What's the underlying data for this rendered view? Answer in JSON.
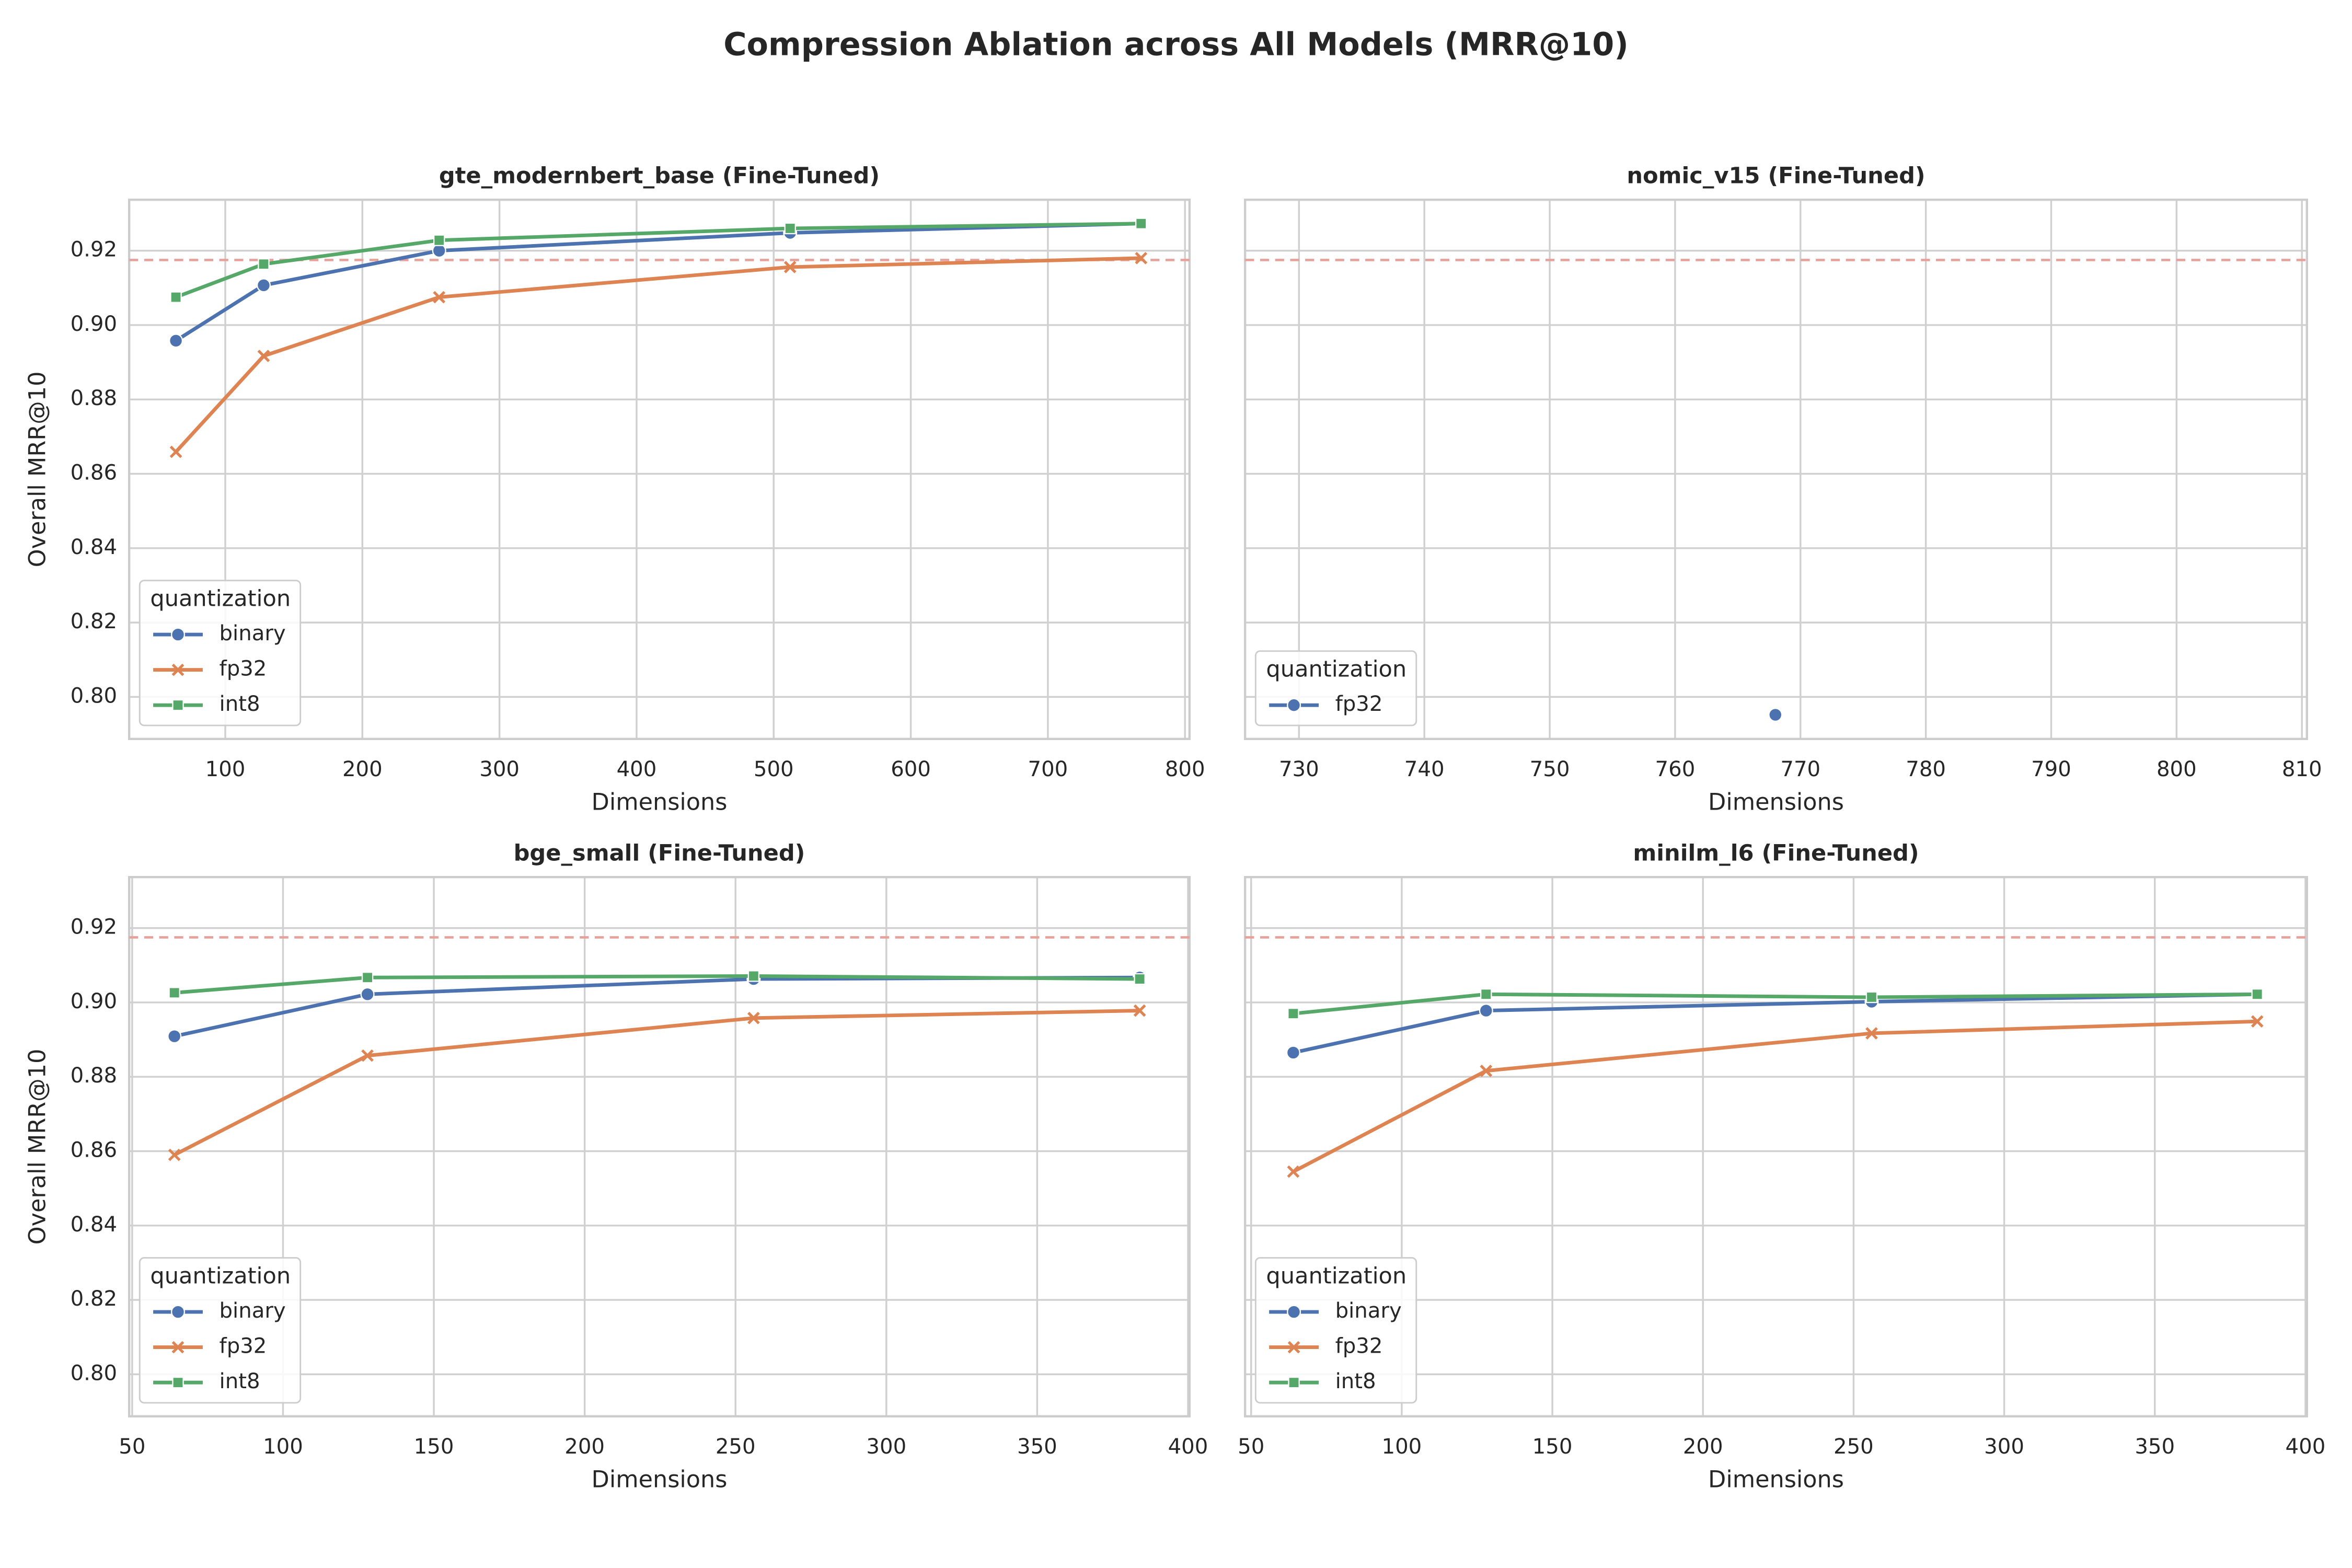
{
  "title": "Compression Ablation across All Models (MRR@10)",
  "chart_data": [
    {
      "type": "line",
      "title": "gte_modernbert_base (Fine-Tuned)",
      "x_label": "Dimensions",
      "y_label": "Overall MRR@10",
      "x": [
        64,
        128,
        256,
        512,
        768
      ],
      "series": [
        {
          "name": "binary",
          "color": "#4c72b0",
          "marker": "o",
          "values": [
            0.8958,
            0.9107,
            0.92,
            0.9248,
            0.9273
          ]
        },
        {
          "name": "fp32",
          "color": "#dd8452",
          "marker": "x",
          "values": [
            0.8659,
            0.8917,
            0.9075,
            0.9156,
            0.918
          ]
        },
        {
          "name": "int8",
          "color": "#55a868",
          "marker": "s",
          "values": [
            0.9075,
            0.9164,
            0.9228,
            0.926,
            0.9273
          ]
        }
      ],
      "xlim": [
        29.9,
        803.3
      ],
      "xticks": [
        100,
        200,
        300,
        400,
        500,
        600,
        700,
        800
      ],
      "ylim": [
        0.7887,
        0.9337
      ],
      "yticks": [
        {
          "value": 0.8,
          "label": "0.80"
        },
        {
          "value": 0.82,
          "label": "0.82"
        },
        {
          "value": 0.84,
          "label": "0.84"
        },
        {
          "value": 0.86,
          "label": "0.86"
        },
        {
          "value": 0.88,
          "label": "0.88"
        },
        {
          "value": 0.9,
          "label": "0.90"
        },
        {
          "value": 0.92,
          "label": "0.92"
        }
      ],
      "reference_line": 0.9175,
      "reference_color": "#e8a09a",
      "grid": true,
      "legend_title": "quantization",
      "legend_loc": "lower left"
    },
    {
      "type": "line",
      "title": "nomic_v15 (Fine-Tuned)",
      "x_label": "Dimensions",
      "x": [
        768
      ],
      "series": [
        {
          "name": "fp32",
          "color": "#4c72b0",
          "marker": "o",
          "values": [
            0.7952
          ]
        }
      ],
      "xlim": [
        725.7,
        810.4
      ],
      "xticks": [
        730,
        740,
        750,
        760,
        770,
        780,
        790,
        800,
        810
      ],
      "ylim": [
        0.7887,
        0.9337
      ],
      "yticks": [
        0.8,
        0.82,
        0.84,
        0.86,
        0.88,
        0.9,
        0.92
      ],
      "show_yticklabels": false,
      "reference_line": 0.9175,
      "reference_color": "#e8a09a",
      "grid": true,
      "legend_title": "quantization",
      "legend_loc": "lower left"
    },
    {
      "type": "line",
      "title": "bge_small (Fine-Tuned)",
      "x_label": "Dimensions",
      "y_label": "Overall MRR@10",
      "x": [
        64,
        128,
        256,
        384
      ],
      "series": [
        {
          "name": "binary",
          "color": "#4c72b0",
          "marker": "o",
          "values": [
            0.8909,
            0.9022,
            0.9063,
            0.9067
          ]
        },
        {
          "name": "fp32",
          "color": "#dd8452",
          "marker": "x",
          "values": [
            0.859,
            0.8857,
            0.8958,
            0.8978
          ]
        },
        {
          "name": "int8",
          "color": "#55a868",
          "marker": "s",
          "values": [
            0.9026,
            0.9067,
            0.9071,
            0.9063
          ]
        }
      ],
      "xlim": [
        49,
        400.5
      ],
      "xticks": [
        50,
        100,
        150,
        200,
        250,
        300,
        350,
        400
      ],
      "ylim": [
        0.7887,
        0.9337
      ],
      "yticks": [
        {
          "value": 0.8,
          "label": "0.80"
        },
        {
          "value": 0.82,
          "label": "0.82"
        },
        {
          "value": 0.84,
          "label": "0.84"
        },
        {
          "value": 0.86,
          "label": "0.86"
        },
        {
          "value": 0.88,
          "label": "0.88"
        },
        {
          "value": 0.9,
          "label": "0.90"
        },
        {
          "value": 0.92,
          "label": "0.92"
        }
      ],
      "reference_line": 0.9175,
      "reference_color": "#e8a09a",
      "grid": true,
      "legend_title": "quantization",
      "legend_loc": "lower left"
    },
    {
      "type": "line",
      "title": "minilm_l6 (Fine-Tuned)",
      "x_label": "Dimensions",
      "x": [
        64,
        128,
        256,
        384
      ],
      "series": [
        {
          "name": "binary",
          "color": "#4c72b0",
          "marker": "o",
          "values": [
            0.8865,
            0.8978,
            0.9002,
            0.9022
          ]
        },
        {
          "name": "fp32",
          "color": "#dd8452",
          "marker": "x",
          "values": [
            0.8545,
            0.8816,
            0.8917,
            0.8949
          ]
        },
        {
          "name": "int8",
          "color": "#55a868",
          "marker": "s",
          "values": [
            0.897,
            0.9022,
            0.9014,
            0.9022
          ]
        }
      ],
      "xlim": [
        48,
        400.5
      ],
      "xticks": [
        50,
        100,
        150,
        200,
        250,
        300,
        350,
        400
      ],
      "ylim": [
        0.7887,
        0.9337
      ],
      "yticks": [
        0.8,
        0.82,
        0.84,
        0.86,
        0.88,
        0.9,
        0.92
      ],
      "show_yticklabels": false,
      "reference_line": 0.9175,
      "reference_color": "#e8a09a",
      "grid": true,
      "legend_title": "quantization",
      "legend_loc": "lower left"
    }
  ]
}
